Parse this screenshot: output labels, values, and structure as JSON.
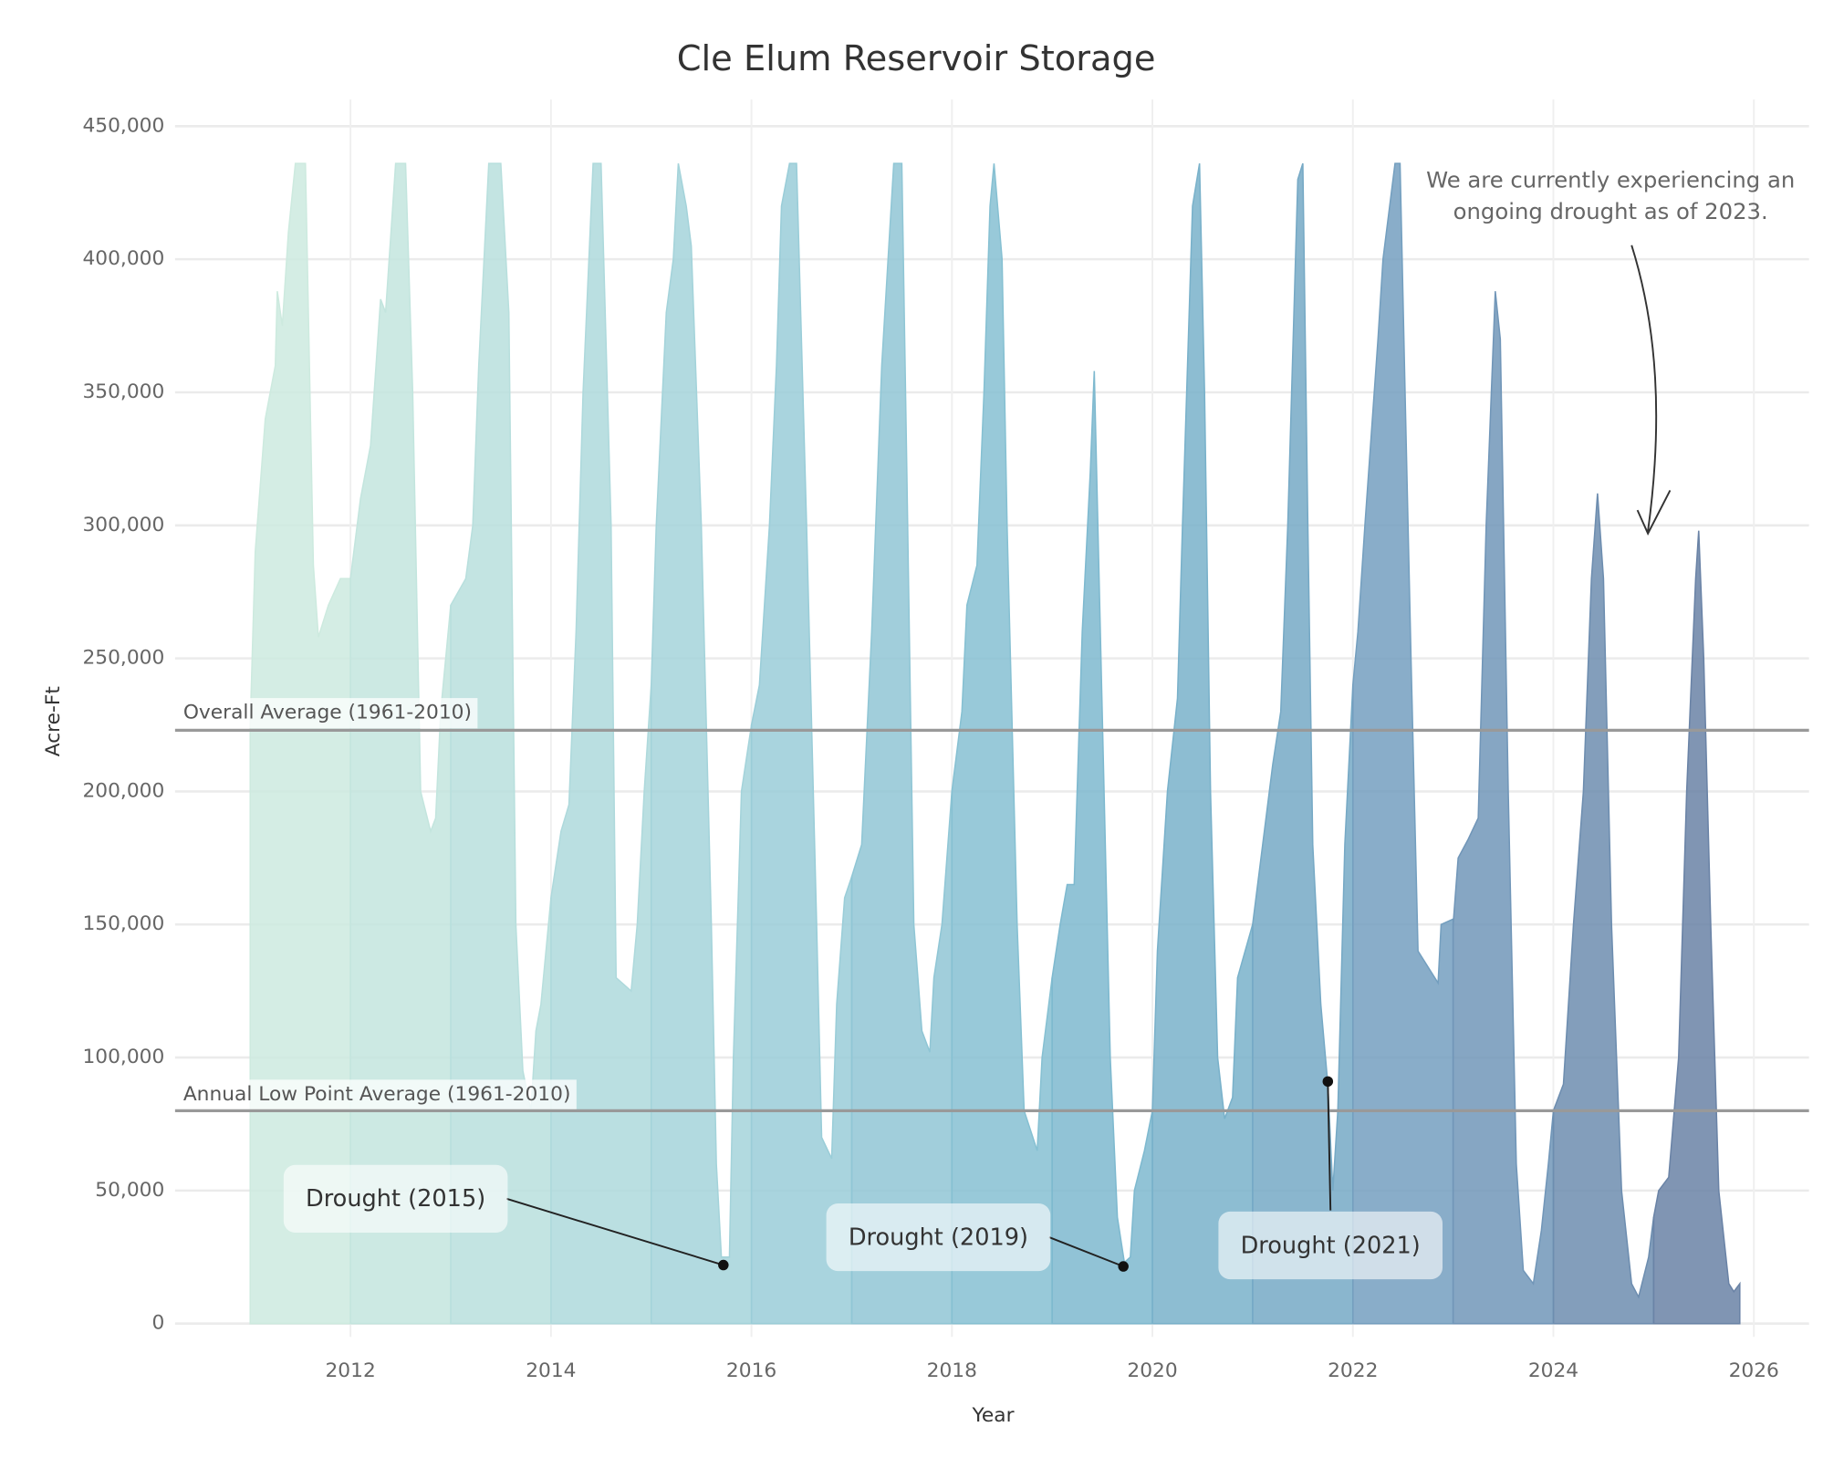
{
  "chart_data": {
    "type": "area",
    "title": "Cle Elum Reservoir Storage",
    "x_label": "Year",
    "y_label": "Acre-Ft",
    "xlim": [
      2010.25,
      2026.55
    ],
    "xticks": [
      2012,
      2014,
      2016,
      2018,
      2020,
      2022,
      2024,
      2026
    ],
    "ylim": [
      -5000,
      460000
    ],
    "yticks": [
      0,
      {
        "value": 50000,
        "label": "50,000"
      },
      {
        "value": 100000,
        "label": "100,000"
      },
      {
        "value": 150000,
        "label": "150,000"
      },
      {
        "value": 200000,
        "label": "200,000"
      },
      {
        "value": 250000,
        "label": "250,000"
      },
      {
        "value": 300000,
        "label": "300,000"
      },
      {
        "value": 350000,
        "label": "350,000"
      },
      {
        "value": 400000,
        "label": "400,000"
      },
      {
        "value": 450000,
        "label": "450,000"
      }
    ],
    "grid": true,
    "series": [
      {
        "color": "#cdeadf",
        "x": [
          2011.0,
          2011.05,
          2011.15,
          2011.25,
          2011.27,
          2011.32,
          2011.38,
          2011.45,
          2011.55,
          2011.63,
          2011.68,
          2011.78,
          2011.9,
          2012.0
        ],
        "values": [
          225000,
          290000,
          340000,
          360000,
          388000,
          375000,
          410000,
          436000,
          436000,
          285000,
          258000,
          270000,
          280000,
          280000
        ]
      },
      {
        "color": "#c3e5de",
        "x": [
          2012.0,
          2012.1,
          2012.2,
          2012.3,
          2012.35,
          2012.45,
          2012.55,
          2012.62,
          2012.7,
          2012.8,
          2012.85,
          2012.9,
          2013.0
        ],
        "values": [
          280000,
          310000,
          330000,
          385000,
          380000,
          436000,
          436000,
          350000,
          200000,
          185000,
          190000,
          230000,
          270000
        ]
      },
      {
        "color": "#b8dfdd",
        "x": [
          2013.0,
          2013.15,
          2013.22,
          2013.28,
          2013.38,
          2013.5,
          2013.58,
          2013.65,
          2013.72,
          2013.8,
          2013.85,
          2013.9,
          2014.0
        ],
        "values": [
          270000,
          280000,
          300000,
          360000,
          436000,
          436000,
          380000,
          150000,
          95000,
          80000,
          110000,
          120000,
          160000
        ]
      },
      {
        "color": "#aed9dc",
        "x": [
          2014.0,
          2014.1,
          2014.18,
          2014.25,
          2014.32,
          2014.42,
          2014.5,
          2014.6,
          2014.65,
          2014.8,
          2014.86,
          2014.93,
          2015.0
        ],
        "values": [
          160000,
          185000,
          195000,
          260000,
          350000,
          436000,
          436000,
          300000,
          130000,
          125000,
          150000,
          200000,
          240000
        ]
      },
      {
        "color": "#a4d3da",
        "x": [
          2015.0,
          2015.05,
          2015.15,
          2015.22,
          2015.27,
          2015.35,
          2015.4,
          2015.5,
          2015.6,
          2015.65,
          2015.7,
          2015.78,
          2015.82,
          2015.9,
          2016.0
        ],
        "values": [
          240000,
          300000,
          380000,
          400000,
          436000,
          420000,
          405000,
          300000,
          150000,
          60000,
          25000,
          25000,
          100000,
          200000,
          225000
        ]
      },
      {
        "color": "#9acdd8",
        "x": [
          2016.0,
          2016.08,
          2016.18,
          2016.25,
          2016.3,
          2016.38,
          2016.45,
          2016.55,
          2016.65,
          2016.7,
          2016.8,
          2016.85,
          2016.93,
          2017.0
        ],
        "values": [
          225000,
          240000,
          300000,
          360000,
          420000,
          436000,
          436000,
          300000,
          150000,
          70000,
          62000,
          120000,
          160000,
          168000
        ]
      },
      {
        "color": "#90c6d5",
        "x": [
          2017.0,
          2017.1,
          2017.2,
          2017.3,
          2017.42,
          2017.5,
          2017.55,
          2017.62,
          2017.7,
          2017.78,
          2017.82,
          2017.9,
          2018.0
        ],
        "values": [
          168000,
          180000,
          260000,
          360000,
          436000,
          436000,
          320000,
          150000,
          110000,
          102000,
          130000,
          150000,
          200000
        ]
      },
      {
        "color": "#86c0d2",
        "x": [
          2018.0,
          2018.1,
          2018.15,
          2018.25,
          2018.32,
          2018.38,
          2018.42,
          2018.5,
          2018.55,
          2018.65,
          2018.72,
          2018.85,
          2018.9,
          2019.0
        ],
        "values": [
          200000,
          230000,
          270000,
          285000,
          350000,
          420000,
          436000,
          400000,
          300000,
          150000,
          80000,
          65000,
          100000,
          130000
        ]
      },
      {
        "color": "#7eb9cf",
        "x": [
          2019.0,
          2019.08,
          2019.15,
          2019.22,
          2019.3,
          2019.38,
          2019.42,
          2019.48,
          2019.58,
          2019.65,
          2019.72,
          2019.78,
          2019.82,
          2019.92,
          2020.0
        ],
        "values": [
          130000,
          150000,
          165000,
          165000,
          260000,
          320000,
          358000,
          260000,
          100000,
          40000,
          23000,
          25000,
          50000,
          65000,
          80000
        ]
      },
      {
        "color": "#79b1ca",
        "x": [
          2020.0,
          2020.05,
          2020.15,
          2020.25,
          2020.3,
          2020.4,
          2020.47,
          2020.52,
          2020.58,
          2020.65,
          2020.72,
          2020.8,
          2020.85,
          2021.0
        ],
        "values": [
          80000,
          140000,
          200000,
          235000,
          300000,
          420000,
          436000,
          350000,
          200000,
          100000,
          77000,
          85000,
          130000,
          150000
        ]
      },
      {
        "color": "#76a9c5",
        "x": [
          2021.0,
          2021.1,
          2021.2,
          2021.28,
          2021.35,
          2021.45,
          2021.5,
          2021.55,
          2021.6,
          2021.68,
          2021.75,
          2021.8,
          2021.85,
          2021.92,
          2022.0
        ],
        "values": [
          150000,
          180000,
          210000,
          230000,
          300000,
          430000,
          436000,
          300000,
          180000,
          120000,
          90000,
          50000,
          80000,
          180000,
          240000
        ]
      },
      {
        "color": "#749fbf",
        "x": [
          2022.0,
          2022.05,
          2022.12,
          2022.25,
          2022.3,
          2022.42,
          2022.47,
          2022.52,
          2022.58,
          2022.65,
          2022.85,
          2022.88,
          2023.0
        ],
        "values": [
          240000,
          260000,
          300000,
          370000,
          400000,
          436000,
          436000,
          350000,
          250000,
          140000,
          128000,
          150000,
          152000
        ]
      },
      {
        "color": "#7196b8",
        "x": [
          2023.0,
          2023.05,
          2023.15,
          2023.25,
          2023.33,
          2023.42,
          2023.47,
          2023.55,
          2023.63,
          2023.7,
          2023.8,
          2023.88,
          2023.95,
          2024.0
        ],
        "values": [
          150000,
          175000,
          182000,
          190000,
          300000,
          388000,
          370000,
          200000,
          60000,
          20000,
          15000,
          35000,
          60000,
          80000
        ]
      },
      {
        "color": "#6d8daf",
        "x": [
          2024.0,
          2024.1,
          2024.2,
          2024.3,
          2024.38,
          2024.44,
          2024.5,
          2024.58,
          2024.68,
          2024.78,
          2024.85,
          2024.95,
          2025.0
        ],
        "values": [
          80000,
          90000,
          150000,
          200000,
          280000,
          312000,
          280000,
          150000,
          50000,
          15000,
          10000,
          25000,
          40000
        ]
      },
      {
        "color": "#6a83a6",
        "x": [
          2025.0,
          2025.05,
          2025.15,
          2025.25,
          2025.33,
          2025.42,
          2025.45,
          2025.5,
          2025.57,
          2025.65,
          2025.75,
          2025.8,
          2025.86
        ],
        "values": [
          40000,
          50000,
          55000,
          100000,
          200000,
          280000,
          298000,
          250000,
          150000,
          50000,
          15000,
          12000,
          15000
        ]
      }
    ],
    "reference_lines": [
      {
        "label": "Overall Average (1961-2010)",
        "value": 223000
      },
      {
        "label": "Annual Low Point Average (1961-2010)",
        "value": 80000
      }
    ],
    "annotations": [
      {
        "label": "Drought (2015)",
        "x": 2015.72,
        "y": 22000
      },
      {
        "label": "Drought (2019)",
        "x": 2019.71,
        "y": 21500
      },
      {
        "label": "Drought (2021)",
        "x": 2021.75,
        "y": 91000
      }
    ],
    "note": [
      "We are currently experiencing an",
      "ongoing drought as of 2023."
    ]
  }
}
